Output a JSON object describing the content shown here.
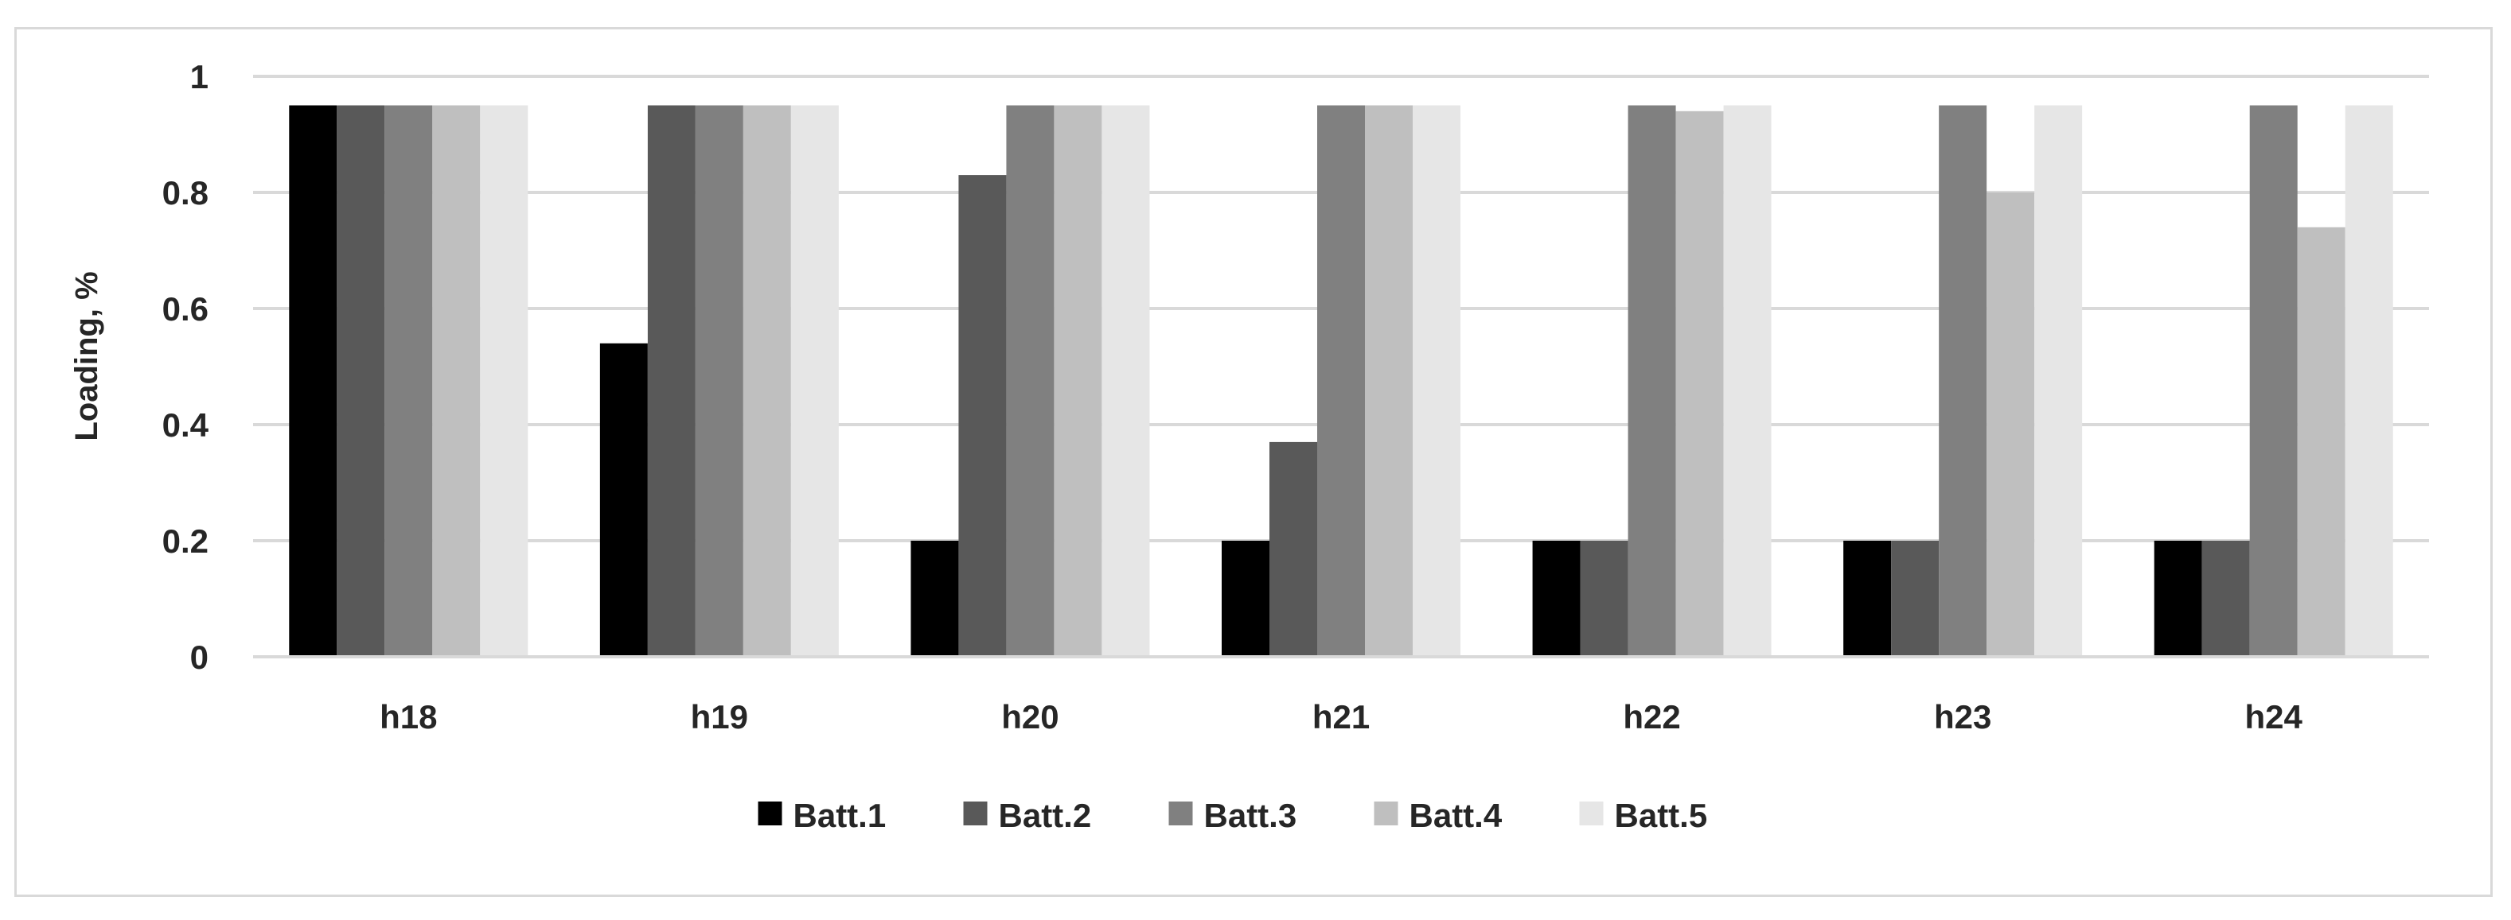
{
  "chart_data": {
    "type": "bar",
    "title": "",
    "xlabel": "",
    "ylabel": "Loading, %",
    "categories": [
      "h18",
      "h19",
      "h20",
      "h21",
      "h22",
      "h23",
      "h24"
    ],
    "ylim": [
      0,
      1
    ],
    "yticks": [
      "0",
      "0.2",
      "0.4",
      "0.6",
      "0.8",
      "1"
    ],
    "grid": true,
    "legend_position": "bottom",
    "series": [
      {
        "name": "Batt.1",
        "color": "#000000",
        "values": [
          0.95,
          0.54,
          0.2,
          0.2,
          0.2,
          0.2,
          0.2
        ]
      },
      {
        "name": "Batt.2",
        "color": "#595959",
        "values": [
          0.95,
          0.95,
          0.83,
          0.37,
          0.2,
          0.2,
          0.2
        ]
      },
      {
        "name": "Batt.3",
        "color": "#808080",
        "values": [
          0.95,
          0.95,
          0.95,
          0.95,
          0.95,
          0.95,
          0.95
        ]
      },
      {
        "name": "Batt.4",
        "color": "#bfbfbf",
        "values": [
          0.95,
          0.95,
          0.95,
          0.95,
          0.94,
          0.8,
          0.74
        ]
      },
      {
        "name": "Batt.5",
        "color": "#e6e6e6",
        "values": [
          0.95,
          0.95,
          0.95,
          0.95,
          0.95,
          0.95,
          0.95
        ]
      }
    ]
  }
}
